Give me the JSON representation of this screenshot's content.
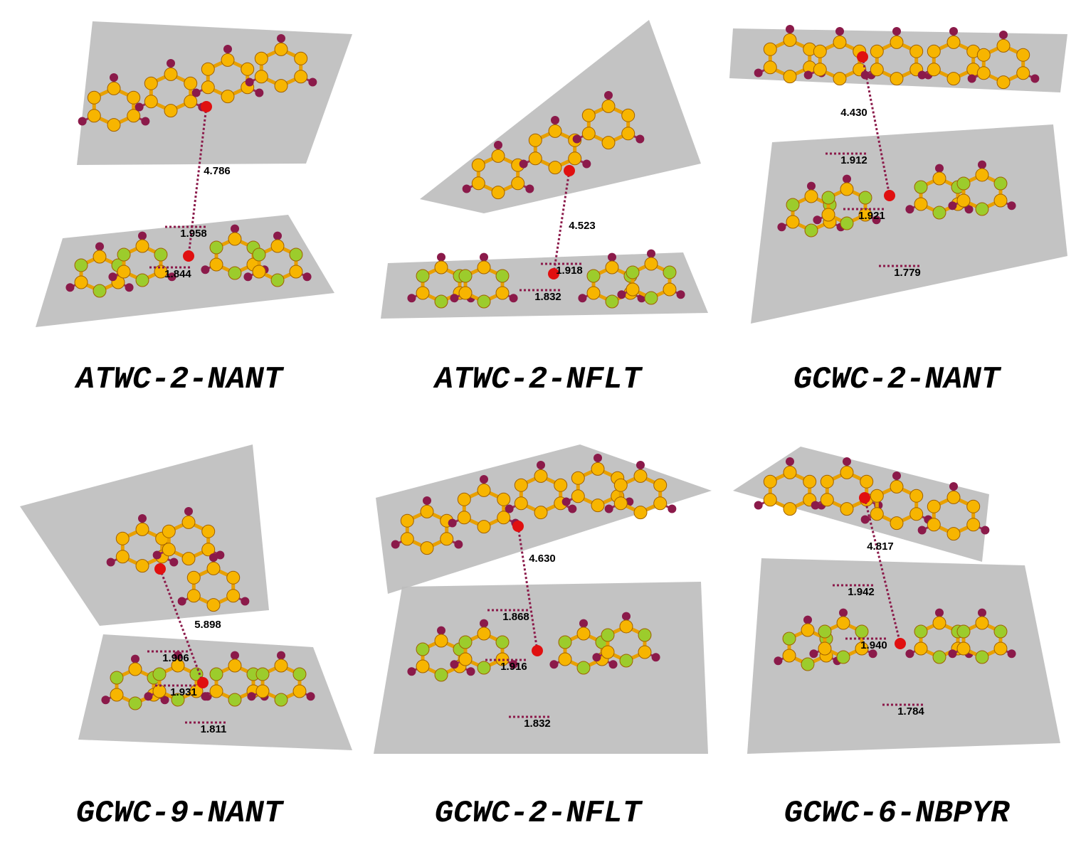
{
  "panels": [
    {
      "caption": "ATWC-2-NANT",
      "distances": [
        "4.786",
        "1.958",
        "1.844"
      ]
    },
    {
      "caption": "ATWC-2-NFLT",
      "distances": [
        "4.523",
        "1.918",
        "1.832"
      ]
    },
    {
      "caption": "GCWC-2-NANT",
      "distances": [
        "4.430",
        "1.912",
        "1.921",
        "1.779"
      ]
    },
    {
      "caption": "GCWC-9-NANT",
      "distances": [
        "5.898",
        "1.906",
        "1.931",
        "1.811"
      ]
    },
    {
      "caption": "GCWC-2-NFLT",
      "distances": [
        "4.630",
        "1.868",
        "1.916",
        "1.832"
      ]
    },
    {
      "caption": "GCWC-6-NBPYR",
      "distances": [
        "4.817",
        "1.942",
        "1.940",
        "1.784"
      ]
    }
  ]
}
